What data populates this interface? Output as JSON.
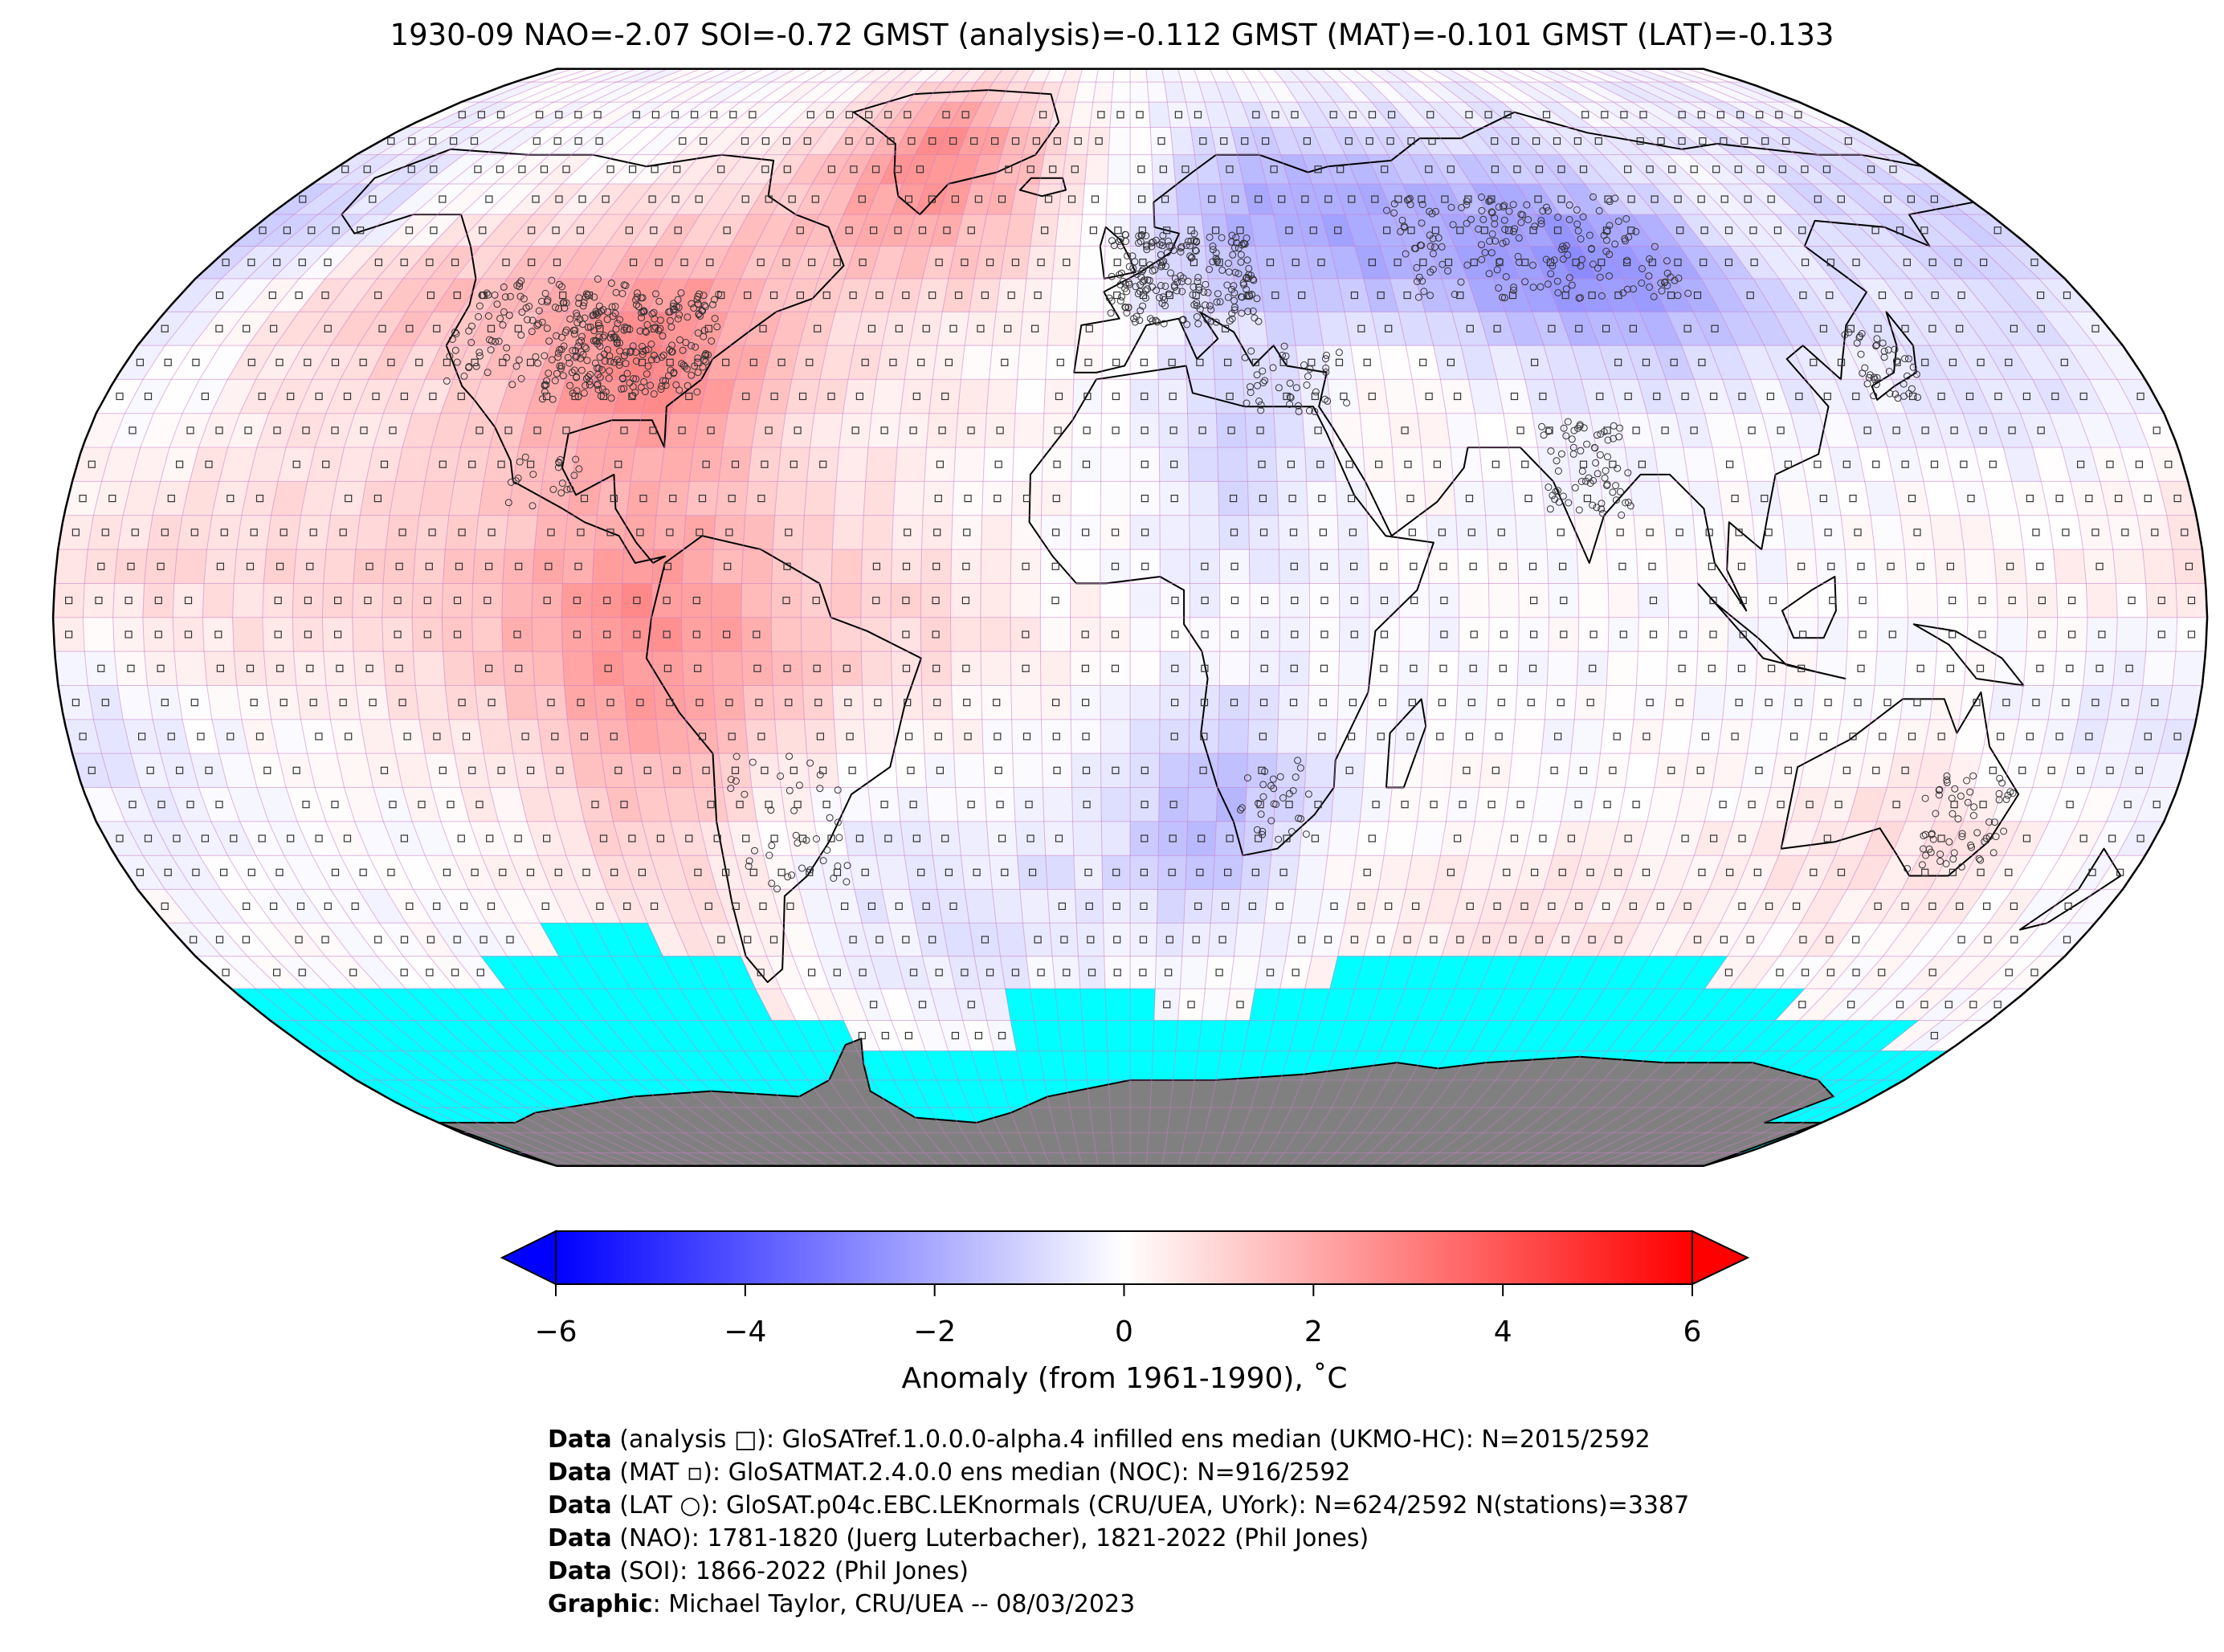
{
  "title": "1930-09 NAO=-2.07 SOI=-0.72 GMST (analysis)=-0.112 GMST (MAT)=-0.101 GMST (LAT)=-0.133",
  "colors": {
    "missing": "#00ffff",
    "land_ice": "#808080",
    "grid": "#c97ec9",
    "cold_end": "#0000ff",
    "neutral": "#ffffff",
    "warm_end": "#ff0000"
  },
  "colorbar": {
    "min": -6,
    "max": 6,
    "ticks": [
      "−6",
      "−4",
      "−2",
      "0",
      "2",
      "4",
      "6"
    ],
    "label": "Anomaly (from 1961-1990), ˚C",
    "extend": "both"
  },
  "credits": [
    {
      "label": "Data",
      "text": " (analysis □): GloSATref.1.0.0.0-alpha.4 infilled ens median (UKMO-HC): N=2015/2592"
    },
    {
      "label": "Data",
      "text": " (MAT ▫): GloSATMAT.2.4.0.0 ens median (NOC): N=916/2592"
    },
    {
      "label": "Data",
      "text": " (LAT ○): GloSAT.p04c.EBC.LEKnormals (CRU/UEA, UYork): N=624/2592 N(stations)=3387"
    },
    {
      "label": "Data",
      "text": " (NAO): 1781-1820 (Juerg Luterbacher), 1821-2022 (Phil Jones)"
    },
    {
      "label": "Data",
      "text": " (SOI): 1866-2022 (Phil Jones)"
    },
    {
      "label": "Graphic",
      "text": ": Michael Taylor, CRU/UEA -- 08/03/2023"
    }
  ]
}
